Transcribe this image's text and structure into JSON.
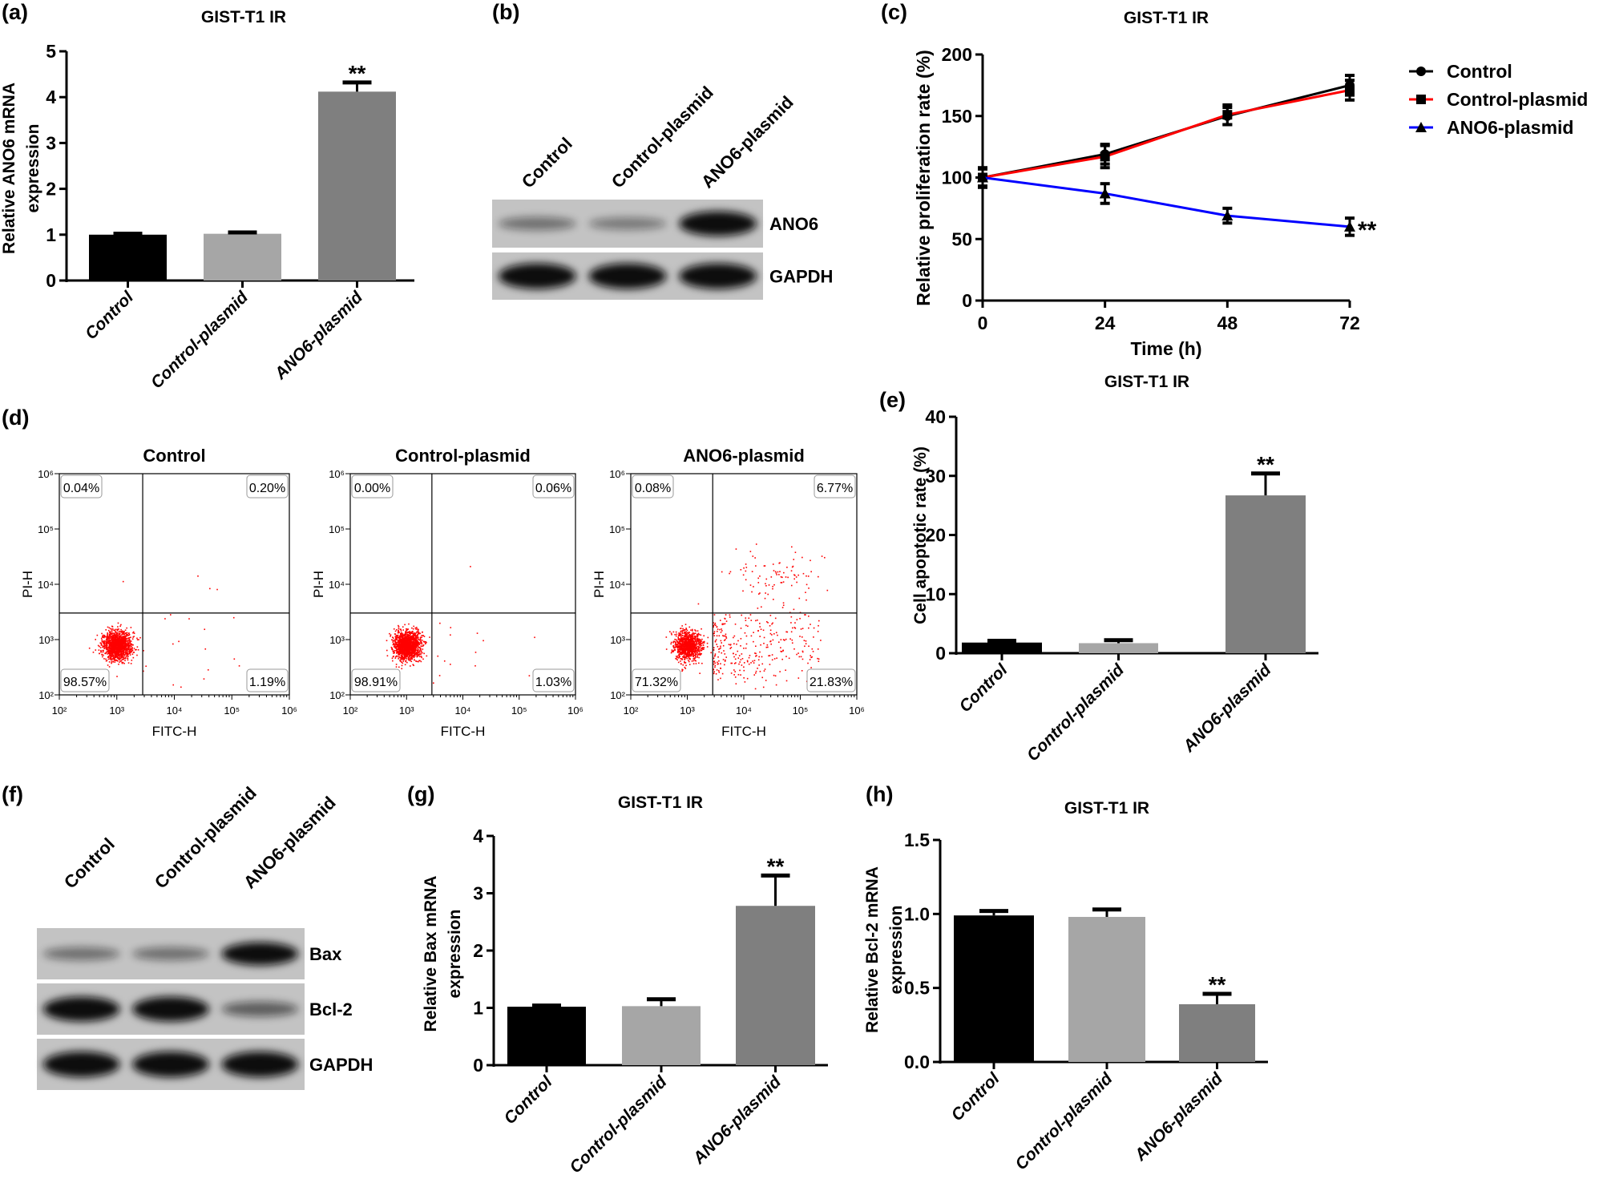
{
  "figure": {
    "panel_labels": [
      "(a)",
      "(b)",
      "(c)",
      "(d)",
      "(e)",
      "(f)",
      "(g)",
      "(h)"
    ]
  },
  "chart_data": [
    {
      "id": "a",
      "type": "bar",
      "title": "GIST-T1 IR",
      "ylabel": [
        "Relative ANO6 mRNA",
        "expression"
      ],
      "categories": [
        "Control",
        "Control-plasmid",
        "ANO6-plasmid"
      ],
      "values": [
        1.0,
        1.02,
        4.12
      ],
      "errors": [
        0.02,
        0.03,
        0.2
      ],
      "colors": [
        "#000000",
        "#a6a6a6",
        "#7f7f7f"
      ],
      "ylim": [
        0,
        5
      ],
      "yticks": [
        "0",
        "1",
        "2",
        "3",
        "4",
        "5"
      ],
      "annotations": [
        "",
        "",
        "**"
      ]
    },
    {
      "id": "c",
      "type": "line",
      "title": "GIST-T1 IR",
      "xlabel": "Time (h)",
      "ylabel": "Relative proliferation rate (%)",
      "x": [
        0,
        24,
        48,
        72
      ],
      "xticks": [
        "0",
        "24",
        "48",
        "72"
      ],
      "ylim": [
        0,
        200
      ],
      "yticks": [
        "0",
        "50",
        "100",
        "150",
        "200"
      ],
      "legend": "right",
      "series": [
        {
          "name": "Control",
          "color": "#000000",
          "marker": "circle",
          "values": [
            100,
            119,
            150,
            175
          ],
          "errors": [
            7,
            8,
            7,
            8
          ]
        },
        {
          "name": "Control-plasmid",
          "color": "#ff0000",
          "marker": "square",
          "values": [
            100,
            117,
            151,
            171
          ],
          "errors": [
            8,
            9,
            8,
            8
          ]
        },
        {
          "name": "ANO6-plasmid",
          "color": "#0000ff",
          "marker": "triangle",
          "values": [
            100,
            87,
            69,
            60
          ],
          "errors": [
            7,
            8,
            6,
            7
          ]
        }
      ],
      "annotation": "**"
    },
    {
      "id": "d",
      "type": "scatter",
      "xlabel": "FITC-H",
      "ylabel": "PI-H",
      "tick_labels": [
        "10²",
        "10³",
        "10⁴",
        "10⁵",
        "10⁶"
      ],
      "axis_log_range": [
        2,
        6
      ],
      "gate_log": [
        3.45,
        3.48
      ],
      "point_color": "#ff0000",
      "plots": [
        {
          "title": "Control",
          "quadrants": {
            "upper_left": "0.04%",
            "upper_right": "0.20%",
            "lower_left": "98.57%",
            "lower_right": "1.19%"
          },
          "pct": [
            0.04,
            0.2,
            98.57,
            1.19
          ]
        },
        {
          "title": "Control-plasmid",
          "quadrants": {
            "upper_left": "0.00%",
            "upper_right": "0.06%",
            "lower_left": "98.91%",
            "lower_right": "1.03%"
          },
          "pct": [
            0.0,
            0.06,
            98.91,
            1.03
          ]
        },
        {
          "title": "ANO6-plasmid",
          "quadrants": {
            "upper_left": "0.08%",
            "upper_right": "6.77%",
            "lower_left": "71.32%",
            "lower_right": "21.83%"
          },
          "pct": [
            0.08,
            6.77,
            71.32,
            21.83
          ]
        }
      ]
    },
    {
      "id": "e",
      "type": "bar",
      "title": "GIST-T1 IR",
      "ylabel": [
        "Cell apoptotic rate (%)"
      ],
      "categories": [
        "Control",
        "Control-plasmid",
        "ANO6-plasmid"
      ],
      "values": [
        1.8,
        1.7,
        26.7
      ],
      "errors": [
        0.3,
        0.5,
        3.7
      ],
      "colors": [
        "#000000",
        "#a6a6a6",
        "#7f7f7f"
      ],
      "ylim": [
        0,
        40
      ],
      "yticks": [
        "0",
        "10",
        "20",
        "30",
        "40"
      ],
      "annotations": [
        "",
        "",
        "**"
      ]
    },
    {
      "id": "g",
      "type": "bar",
      "title": "GIST-T1 IR",
      "ylabel": [
        "Relative Bax mRNA",
        "expression"
      ],
      "categories": [
        "Control",
        "Control-plasmid",
        "ANO6-plasmid"
      ],
      "values": [
        1.02,
        1.03,
        2.78
      ],
      "errors": [
        0.02,
        0.12,
        0.53
      ],
      "colors": [
        "#000000",
        "#a6a6a6",
        "#7f7f7f"
      ],
      "ylim": [
        0,
        4
      ],
      "yticks": [
        "0",
        "1",
        "2",
        "3",
        "4"
      ],
      "annotations": [
        "",
        "",
        "**"
      ]
    },
    {
      "id": "h",
      "type": "bar",
      "title": "GIST-T1 IR",
      "ylabel": [
        "Relative Bcl-2 mRNA",
        "expression"
      ],
      "categories": [
        "Control",
        "Control-plasmid",
        "ANO6-plasmid"
      ],
      "values": [
        0.99,
        0.98,
        0.39
      ],
      "errors": [
        0.03,
        0.05,
        0.07
      ],
      "colors": [
        "#000000",
        "#a6a6a6",
        "#7f7f7f"
      ],
      "ylim": [
        0,
        1.5
      ],
      "yticks": [
        "0.0",
        "0.5",
        "1.0",
        "1.5"
      ],
      "annotations": [
        "",
        "",
        "**"
      ]
    }
  ],
  "blots": [
    {
      "id": "b",
      "lanes": [
        "Control",
        "Control-plasmid",
        "ANO6-plasmid"
      ],
      "bands": [
        {
          "name": "ANO6",
          "intensities": [
            0.3,
            0.25,
            0.95
          ]
        },
        {
          "name": "GAPDH",
          "intensities": [
            1,
            1,
            1
          ]
        }
      ]
    },
    {
      "id": "f",
      "lanes": [
        "Control",
        "Control-plasmid",
        "ANO6-plasmid"
      ],
      "bands": [
        {
          "name": "Bax",
          "intensities": [
            0.3,
            0.3,
            0.85
          ]
        },
        {
          "name": "Bcl-2",
          "intensities": [
            0.95,
            0.95,
            0.4
          ]
        },
        {
          "name": "GAPDH",
          "intensities": [
            1,
            1,
            1
          ]
        }
      ]
    }
  ]
}
